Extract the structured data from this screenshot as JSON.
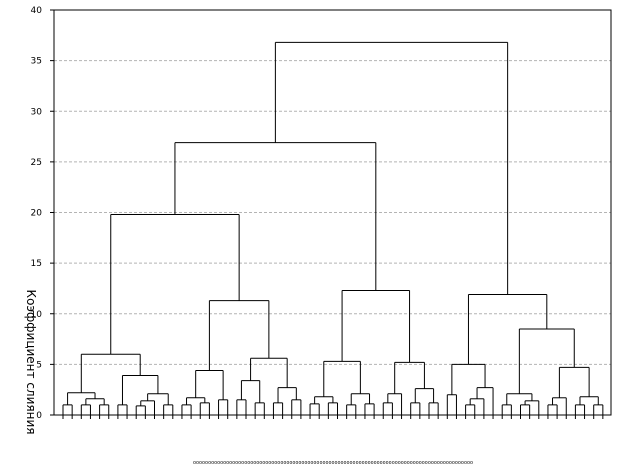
{
  "chart_data": {
    "type": "dendrogram",
    "title": "",
    "xlabel": "",
    "ylabel": "Коэффициент слияния",
    "ylim": [
      0,
      40
    ],
    "y_ticks": [
      {
        "value": 0,
        "label": "0"
      },
      {
        "value": 5,
        "label": "5"
      },
      {
        "value": 10,
        "label": "10"
      },
      {
        "value": 15,
        "label": "15"
      },
      {
        "value": 20,
        "label": "20"
      },
      {
        "value": 25,
        "label": "25"
      },
      {
        "value": 30,
        "label": "30"
      },
      {
        "value": 35,
        "label": "35"
      },
      {
        "value": 40,
        "label": "40"
      }
    ],
    "grid": true,
    "leaf_label_text": "ooooooooooooooooooooooooooooooooooooooooooooooooooooooooooooooooooooooooooooooooooooooooooooo",
    "leaf_count": 60,
    "tree": {
      "h": 36.8,
      "children": [
        {
          "h": 26.9,
          "children": [
            {
              "h": 19.8,
              "children": [
                {
                  "h": 6.0,
                  "children": [
                    {
                      "h": 2.2,
                      "children": [
                        {
                          "h": 1.0,
                          "children": [
                            {
                              "leaf": 1
                            },
                            {
                              "leaf": 2
                            }
                          ]
                        },
                        {
                          "h": 1.6,
                          "children": [
                            {
                              "h": 1.0,
                              "children": [
                                {
                                  "leaf": 3
                                },
                                {
                                  "leaf": 4
                                }
                              ]
                            },
                            {
                              "h": 1.0,
                              "children": [
                                {
                                  "leaf": 5
                                },
                                {
                                  "leaf": 6
                                }
                              ]
                            }
                          ]
                        }
                      ]
                    },
                    {
                      "h": 3.9,
                      "children": [
                        {
                          "h": 1.0,
                          "children": [
                            {
                              "leaf": 7
                            },
                            {
                              "leaf": 8
                            }
                          ]
                        },
                        {
                          "h": 2.1,
                          "children": [
                            {
                              "h": 1.4,
                              "children": [
                                {
                                  "h": 0.9,
                                  "children": [
                                    {
                                      "leaf": 9
                                    },
                                    {
                                      "leaf": 10
                                    }
                                  ]
                                },
                                {
                                  "leaf": 11
                                }
                              ]
                            },
                            {
                              "h": 1.0,
                              "children": [
                                {
                                  "leaf": 12
                                },
                                {
                                  "leaf": 13
                                }
                              ]
                            }
                          ]
                        }
                      ]
                    }
                  ]
                },
                {
                  "h": 11.3,
                  "children": [
                    {
                      "h": 4.4,
                      "children": [
                        {
                          "h": 1.7,
                          "children": [
                            {
                              "h": 1.0,
                              "children": [
                                {
                                  "leaf": 14
                                },
                                {
                                  "leaf": 15
                                }
                              ]
                            },
                            {
                              "h": 1.2,
                              "children": [
                                {
                                  "leaf": 16
                                },
                                {
                                  "leaf": 17
                                }
                              ]
                            }
                          ]
                        },
                        {
                          "h": 1.5,
                          "children": [
                            {
                              "leaf": 18
                            },
                            {
                              "leaf": 19
                            }
                          ]
                        }
                      ]
                    },
                    {
                      "h": 5.6,
                      "children": [
                        {
                          "h": 3.4,
                          "children": [
                            {
                              "h": 1.5,
                              "children": [
                                {
                                  "leaf": 20
                                },
                                {
                                  "leaf": 21
                                }
                              ]
                            },
                            {
                              "h": 1.2,
                              "children": [
                                {
                                  "leaf": 22
                                },
                                {
                                  "leaf": 23
                                }
                              ]
                            }
                          ]
                        },
                        {
                          "h": 2.7,
                          "children": [
                            {
                              "h": 1.2,
                              "children": [
                                {
                                  "leaf": 24
                                },
                                {
                                  "leaf": 25
                                }
                              ]
                            },
                            {
                              "h": 1.5,
                              "children": [
                                {
                                  "leaf": 26
                                },
                                {
                                  "leaf": 27
                                }
                              ]
                            }
                          ]
                        }
                      ]
                    }
                  ]
                }
              ]
            },
            {
              "h": 12.3,
              "children": [
                {
                  "h": 5.3,
                  "children": [
                    {
                      "h": 1.8,
                      "children": [
                        {
                          "h": 1.1,
                          "children": [
                            {
                              "leaf": 28
                            },
                            {
                              "leaf": 29
                            }
                          ]
                        },
                        {
                          "h": 1.2,
                          "children": [
                            {
                              "leaf": 30
                            },
                            {
                              "leaf": 31
                            }
                          ]
                        }
                      ]
                    },
                    {
                      "h": 2.1,
                      "children": [
                        {
                          "h": 1.0,
                          "children": [
                            {
                              "leaf": 32
                            },
                            {
                              "leaf": 33
                            }
                          ]
                        },
                        {
                          "h": 1.1,
                          "children": [
                            {
                              "leaf": 34
                            },
                            {
                              "leaf": 35
                            }
                          ]
                        }
                      ]
                    }
                  ]
                },
                {
                  "h": 5.2,
                  "children": [
                    {
                      "h": 2.1,
                      "children": [
                        {
                          "h": 1.2,
                          "children": [
                            {
                              "leaf": 36
                            },
                            {
                              "leaf": 37
                            }
                          ]
                        },
                        {
                          "leaf": 38
                        }
                      ]
                    },
                    {
                      "h": 2.6,
                      "children": [
                        {
                          "h": 1.2,
                          "children": [
                            {
                              "leaf": 39
                            },
                            {
                              "leaf": 40
                            }
                          ]
                        },
                        {
                          "h": 1.2,
                          "children": [
                            {
                              "leaf": 41
                            },
                            {
                              "leaf": 42
                            }
                          ]
                        }
                      ]
                    }
                  ]
                }
              ]
            }
          ]
        },
        {
          "h": 11.9,
          "children": [
            {
              "h": 5.0,
              "children": [
                {
                  "h": 2.0,
                  "children": [
                    {
                      "leaf": 43
                    },
                    {
                      "leaf": 44
                    }
                  ]
                },
                {
                  "h": 2.7,
                  "children": [
                    {
                      "h": 1.6,
                      "children": [
                        {
                          "h": 1.0,
                          "children": [
                            {
                              "leaf": 45
                            },
                            {
                              "leaf": 46
                            }
                          ]
                        },
                        {
                          "leaf": 47
                        }
                      ]
                    },
                    {
                      "leaf": 48
                    }
                  ]
                }
              ]
            },
            {
              "h": 8.5,
              "children": [
                {
                  "h": 2.1,
                  "children": [
                    {
                      "h": 1.0,
                      "children": [
                        {
                          "leaf": 49
                        },
                        {
                          "leaf": 50
                        }
                      ]
                    },
                    {
                      "h": 1.4,
                      "children": [
                        {
                          "h": 1.0,
                          "children": [
                            {
                              "leaf": 51
                            },
                            {
                              "leaf": 52
                            }
                          ]
                        },
                        {
                          "leaf": 53
                        }
                      ]
                    }
                  ]
                },
                {
                  "h": 4.7,
                  "children": [
                    {
                      "h": 1.7,
                      "children": [
                        {
                          "h": 1.0,
                          "children": [
                            {
                              "leaf": 54
                            },
                            {
                              "leaf": 55
                            }
                          ]
                        },
                        {
                          "leaf": 56
                        }
                      ]
                    },
                    {
                      "h": 1.8,
                      "children": [
                        {
                          "h": 1.0,
                          "children": [
                            {
                              "leaf": 57
                            },
                            {
                              "leaf": 58
                            }
                          ]
                        },
                        {
                          "h": 1.0,
                          "children": [
                            {
                              "leaf": 59
                            },
                            {
                              "leaf": 60
                            }
                          ]
                        }
                      ]
                    }
                  ]
                }
              ]
            }
          ]
        }
      ]
    }
  }
}
